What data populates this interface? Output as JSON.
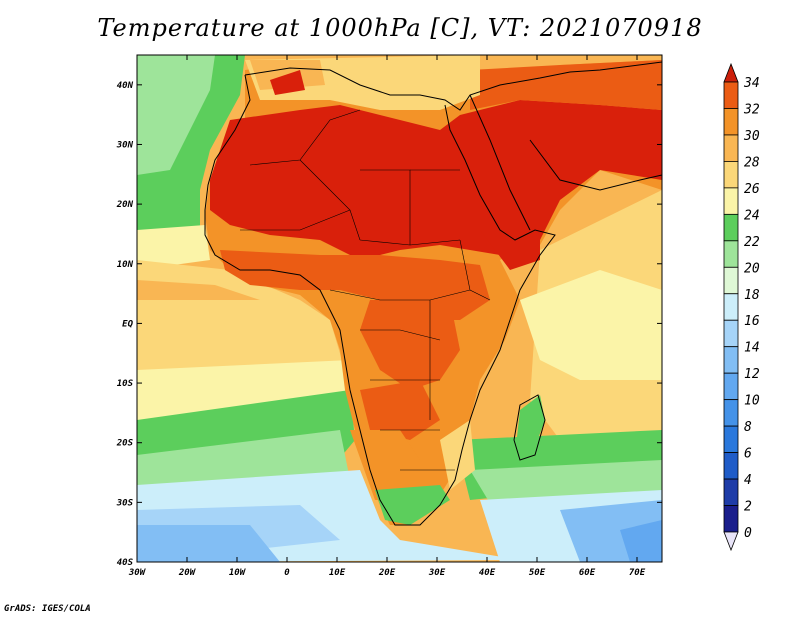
{
  "title": "Temperature at 1000hPa [C], VT: 2021070918",
  "credit": "GrADS: IGES/COLA",
  "map": {
    "lon_range": [
      -30,
      75
    ],
    "lat_range": [
      -40,
      45
    ],
    "lon_ticks": [
      {
        "value": -30,
        "label": "30W"
      },
      {
        "value": -20,
        "label": "20W"
      },
      {
        "value": -10,
        "label": "10W"
      },
      {
        "value": 0,
        "label": "0"
      },
      {
        "value": 10,
        "label": "10E"
      },
      {
        "value": 20,
        "label": "20E"
      },
      {
        "value": 30,
        "label": "30E"
      },
      {
        "value": 40,
        "label": "40E"
      },
      {
        "value": 50,
        "label": "50E"
      },
      {
        "value": 60,
        "label": "60E"
      },
      {
        "value": 70,
        "label": "70E"
      }
    ],
    "lat_ticks": [
      {
        "value": 40,
        "label": "40N"
      },
      {
        "value": 30,
        "label": "30N"
      },
      {
        "value": 20,
        "label": "20N"
      },
      {
        "value": 10,
        "label": "10N"
      },
      {
        "value": 0,
        "label": "EQ"
      },
      {
        "value": -10,
        "label": "10S"
      },
      {
        "value": -20,
        "label": "20S"
      },
      {
        "value": -30,
        "label": "30S"
      },
      {
        "value": -40,
        "label": "40S"
      }
    ]
  },
  "colorbar": {
    "levels": [
      0,
      2,
      4,
      6,
      8,
      10,
      12,
      14,
      16,
      18,
      20,
      22,
      24,
      26,
      28,
      30,
      32,
      34
    ],
    "colors": [
      "#1a1e8c",
      "#1e3ca8",
      "#1f5cc8",
      "#2a78dc",
      "#4492e8",
      "#62a8f0",
      "#82bef4",
      "#a6d4f8",
      "#cceefa",
      "#dff8d6",
      "#9ee49a",
      "#5cce5c",
      "#fbf4a8",
      "#fbd779",
      "#f9b653",
      "#f39328",
      "#eb5c14",
      "#d9200b"
    ],
    "under_color": "#e8e4f8",
    "over_color": "#cc1f0a"
  }
}
